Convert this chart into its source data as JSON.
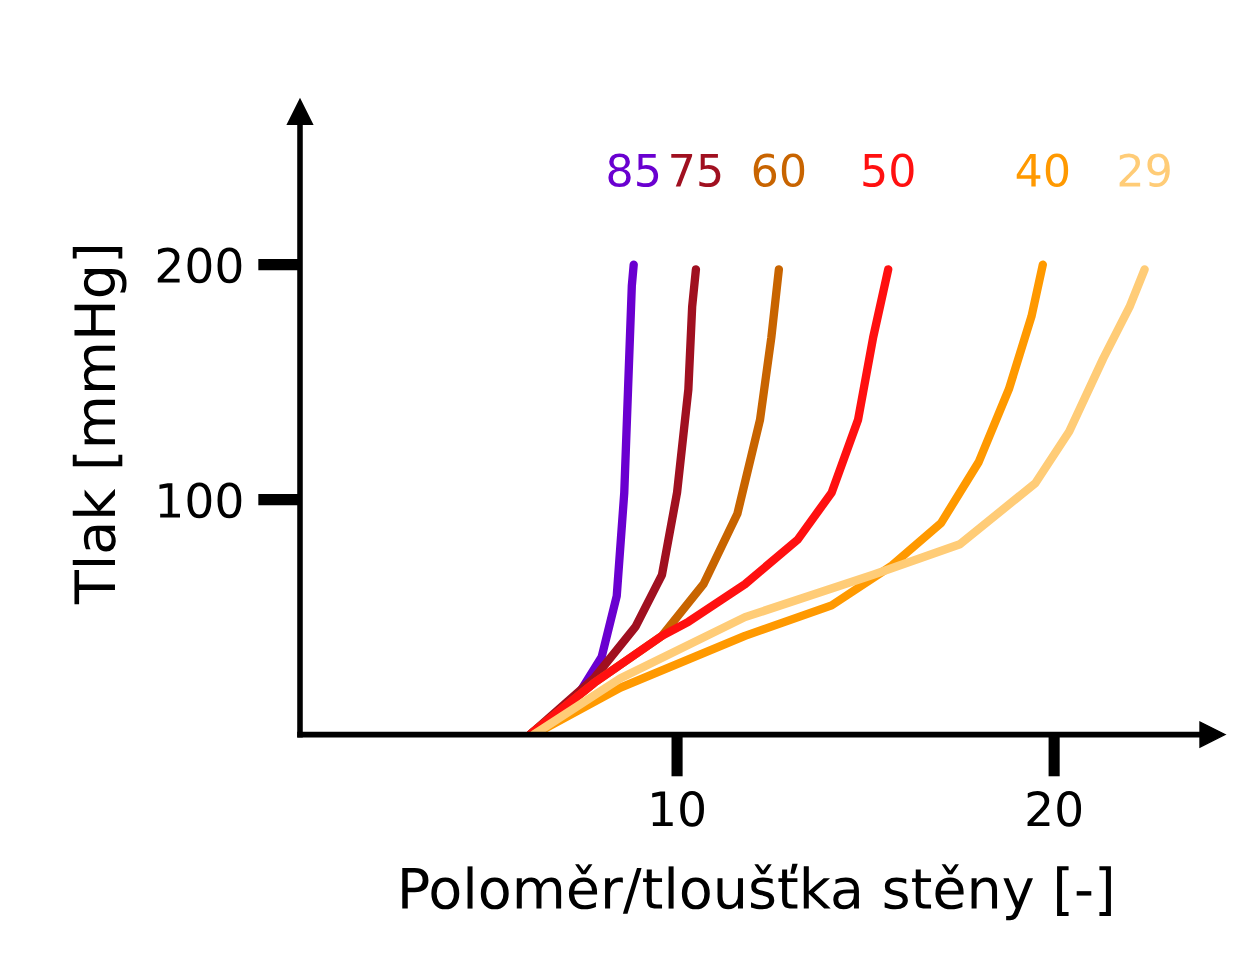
{
  "chart_data": {
    "type": "line",
    "xlabel": "Poloměr/tloušťka stěny [-]",
    "ylabel": "Tlak [mmHg]",
    "xlim": [
      0,
      24.2
    ],
    "ylim": [
      0,
      265
    ],
    "xticks": [
      10,
      20
    ],
    "yticks": [
      100,
      200
    ],
    "grid": false,
    "legend": false,
    "marker": "none",
    "line_style": "solid",
    "series": [
      {
        "name": "85",
        "color": "#6a00d0",
        "x": [
          6.1,
          7.3,
          8.0,
          8.4,
          8.6,
          8.7,
          8.8,
          8.85
        ],
        "values": [
          0,
          15,
          33,
          59,
          103,
          147,
          191,
          200
        ]
      },
      {
        "name": "75",
        "color": "#a01020",
        "x": [
          6.1,
          7.8,
          8.9,
          9.6,
          10.0,
          10.3,
          10.4,
          10.5
        ],
        "values": [
          0,
          24,
          46,
          68,
          103,
          147,
          182,
          198
        ]
      },
      {
        "name": "60",
        "color": "#c86400",
        "x": [
          6.1,
          7.8,
          9.6,
          10.7,
          11.6,
          12.2,
          12.5,
          12.7
        ],
        "values": [
          0,
          22,
          42,
          64,
          94,
          134,
          169,
          198
        ]
      },
      {
        "name": "50",
        "color": "#ff1010",
        "x": [
          6.1,
          7.8,
          9.6,
          10.3,
          11.8,
          13.2,
          14.1,
          14.8,
          15.2,
          15.6
        ],
        "values": [
          0,
          22,
          42,
          48,
          64,
          83,
          103,
          134,
          169,
          198
        ]
      },
      {
        "name": "40",
        "color": "#ff9900",
        "x": [
          6.2,
          8.5,
          11.8,
          14.1,
          15.7,
          17.0,
          18.0,
          18.8,
          19.4,
          19.7
        ],
        "values": [
          0,
          20,
          42,
          55,
          72,
          90,
          116,
          147,
          178,
          200
        ]
      },
      {
        "name": "29",
        "color": "#ffcc77",
        "x": [
          6.2,
          8.5,
          11.8,
          15.2,
          17.5,
          19.5,
          20.4,
          21.3,
          22.0,
          22.4
        ],
        "values": [
          0,
          24,
          50,
          68,
          81,
          107,
          129,
          160,
          182,
          198
        ]
      }
    ]
  }
}
